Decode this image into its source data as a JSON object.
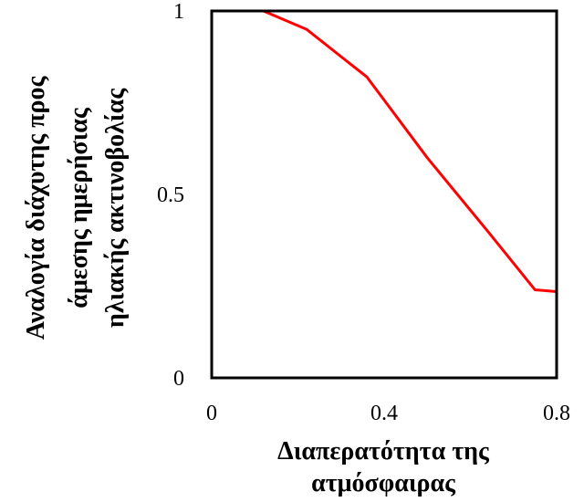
{
  "chart_data": {
    "type": "line",
    "title": "",
    "xlabel_lines": [
      "Διαπερατότητα της",
      "ατμόσφαιρας"
    ],
    "ylabel_lines": [
      "Αναλογία διάχυτης προς",
      "άμεσης ημερήσιας",
      "ηλιακής ακτινοβολίας"
    ],
    "xlim": [
      0,
      0.8
    ],
    "ylim": [
      0,
      1
    ],
    "x_ticks": [
      0,
      0.4,
      0.8
    ],
    "x_tick_labels": [
      "0",
      "0.4",
      "0.8"
    ],
    "y_ticks": [
      0,
      0.5,
      1
    ],
    "y_tick_labels": [
      "0",
      "0.5",
      "1"
    ],
    "grid": false,
    "legend": "none",
    "series": [
      {
        "color": "#ff0000",
        "x": [
          0,
          0.12,
          0.22,
          0.36,
          0.5,
          0.64,
          0.75,
          0.8
        ],
        "y": [
          1.0,
          1.0,
          0.95,
          0.82,
          0.6,
          0.4,
          0.24,
          0.235
        ]
      }
    ]
  }
}
